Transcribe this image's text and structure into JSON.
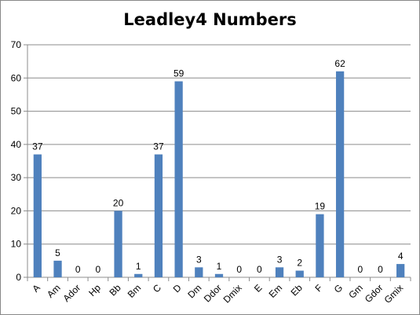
{
  "chart_data": {
    "type": "bar",
    "title": "Leadley4 Numbers",
    "xlabel": "",
    "ylabel": "",
    "ylim": [
      0,
      70
    ],
    "yticks": [
      0,
      10,
      20,
      30,
      40,
      50,
      60,
      70
    ],
    "grid": true,
    "legend": "none",
    "bar_color": "#4F81BD",
    "categories": [
      "A",
      "Am",
      "Ador",
      "Hp",
      "Bb",
      "Bm",
      "C",
      "D",
      "Dm",
      "Ddor",
      "Dmix",
      "E",
      "Em",
      "Eb",
      "F",
      "G",
      "Gm",
      "Gdor",
      "Gmix"
    ],
    "values": [
      37,
      5,
      0,
      0,
      20,
      1,
      37,
      59,
      3,
      1,
      0,
      0,
      3,
      2,
      19,
      62,
      0,
      0,
      4
    ]
  }
}
